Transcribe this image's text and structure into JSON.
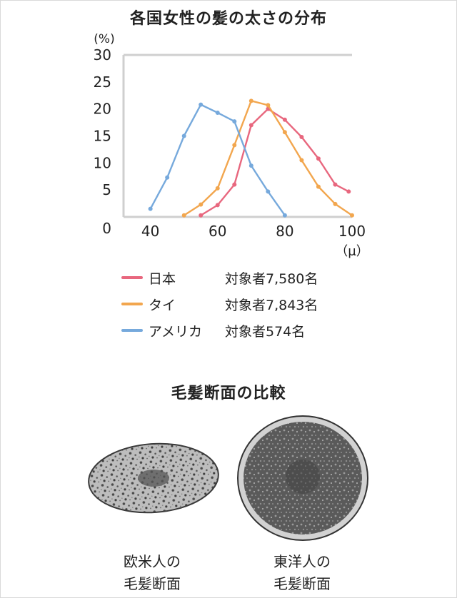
{
  "page": {
    "title": "各国女性の髪の太さの分布",
    "section_title": "毛髪断面の比較"
  },
  "chart_data": {
    "type": "line",
    "title": "各国女性の髪の太さの分布",
    "ylabel": "(%)",
    "xlabel": "（μ）",
    "xlim": [
      32,
      100
    ],
    "ylim": [
      0,
      30
    ],
    "x_ticks": [
      40,
      60,
      80,
      100
    ],
    "y_ticks": [
      0,
      5,
      10,
      15,
      20,
      25,
      30
    ],
    "grid": false,
    "series": [
      {
        "name": "日本",
        "count_label": "対象者7,580名",
        "color": "#e8677e",
        "x": [
          55,
          60,
          65,
          70,
          75,
          80,
          85,
          90,
          95,
          99
        ],
        "y": [
          0.3,
          2.2,
          6.0,
          17.0,
          20.0,
          18.0,
          14.8,
          10.8,
          6.0,
          4.7
        ]
      },
      {
        "name": "タイ",
        "count_label": "対象者7,843名",
        "color": "#f2a64e",
        "x": [
          50,
          55,
          60,
          65,
          70,
          75,
          80,
          85,
          90,
          95,
          100
        ],
        "y": [
          0.3,
          2.3,
          5.3,
          13.3,
          21.5,
          20.7,
          15.7,
          10.5,
          5.6,
          2.4,
          0.3
        ]
      },
      {
        "name": "アメリカ",
        "count_label": "対象者574名",
        "color": "#76a9dc",
        "x": [
          40,
          45,
          50,
          55,
          60,
          65,
          70,
          75,
          80
        ],
        "y": [
          1.5,
          7.3,
          15.0,
          20.8,
          19.3,
          17.7,
          9.5,
          4.7,
          0.3
        ]
      }
    ]
  },
  "comparison": {
    "left_caption": [
      "欧米人の",
      "毛髪断面"
    ],
    "right_caption": [
      "東洋人の",
      "毛髪断面"
    ]
  }
}
